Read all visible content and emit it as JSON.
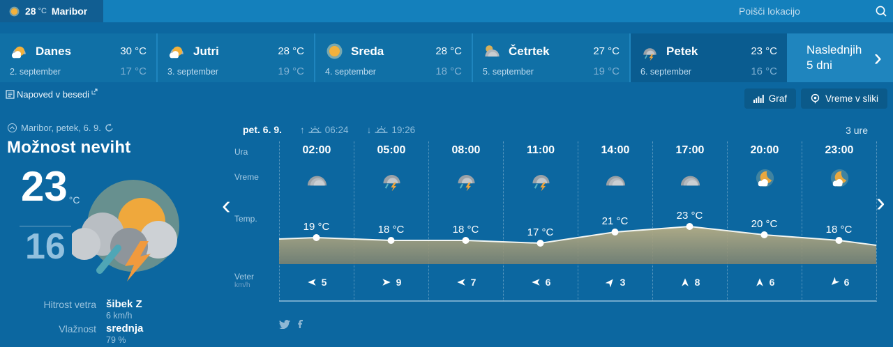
{
  "header": {
    "current_temp": "28",
    "current_unit": "°C",
    "location": "Maribor",
    "search_placeholder": "Poišči lokacijo"
  },
  "day_tabs": [
    {
      "label": "Danes",
      "date": "2. september",
      "high": "30 °C",
      "low": "17 °C",
      "icon": "sun-cloud",
      "selected": false
    },
    {
      "label": "Jutri",
      "date": "3. september",
      "high": "28 °C",
      "low": "19 °C",
      "icon": "sun-cloud",
      "selected": false
    },
    {
      "label": "Sreda",
      "date": "4. september",
      "high": "28 °C",
      "low": "18 °C",
      "icon": "sun",
      "selected": false
    },
    {
      "label": "Četrtek",
      "date": "5. september",
      "high": "27 °C",
      "low": "19 °C",
      "icon": "cloud-sun",
      "selected": false
    },
    {
      "label": "Petek",
      "date": "6. september",
      "high": "23 °C",
      "low": "16 °C",
      "icon": "storm",
      "selected": true
    }
  ],
  "next_days": {
    "line1": "Naslednjih",
    "line2": "5 dni",
    "chevron": "›"
  },
  "toolbar": {
    "text_forecast": "Napoved v besedi",
    "graf": "Graf",
    "vreme_v_sliki": "Vreme v sliki"
  },
  "summary": {
    "location_line": "Maribor, petek, 6. 9.",
    "condition": "Možnost neviht",
    "high": "23",
    "high_unit": "°C",
    "low": "16",
    "wind_label": "Hitrost vetra",
    "wind_value": "šibek Z",
    "wind_detail": "6 km/h",
    "humidity_label": "Vlažnost",
    "humidity_value": "srednja",
    "humidity_detail": "79 %"
  },
  "chart_header": {
    "date": "pet. 6. 9.",
    "sunrise_arrow": "↑",
    "sunrise": "06:24",
    "sunset_arrow": "↓",
    "sunset": "19:26",
    "interval": "3 ure"
  },
  "chart_nav": {
    "prev": "‹",
    "next": "›"
  },
  "row_labels": {
    "hour": "Ura",
    "weather": "Vreme",
    "temp": "Temp.",
    "wind": "Veter",
    "wind_unit": "km/h"
  },
  "chart_data": {
    "type": "area",
    "x": [
      "02:00",
      "05:00",
      "08:00",
      "11:00",
      "14:00",
      "17:00",
      "20:00",
      "23:00"
    ],
    "series": [
      {
        "name": "Temperatura",
        "unit": "°C",
        "values": [
          19,
          18,
          18,
          17,
          21,
          23,
          20,
          18
        ]
      },
      {
        "name": "Veter",
        "unit": "km/h",
        "values": [
          5,
          9,
          7,
          6,
          3,
          8,
          6,
          6
        ]
      }
    ],
    "weather_icons": [
      "cloud",
      "storm",
      "storm",
      "storm",
      "cloud",
      "cloud",
      "moon-cloud",
      "moon-cloud"
    ],
    "wind_dirs_deg": [
      -90,
      90,
      -90,
      -90,
      40,
      0,
      0,
      -135
    ],
    "ylim": [
      15,
      25
    ],
    "grid": "dotted-vertical",
    "legend": "none"
  },
  "colors": {
    "page_bg": "#0C67A0",
    "topbar_bg": "#1480BC",
    "chip_bg": "#115E92",
    "band_bg": "#1F85BE",
    "tab_bg": "#1070A6",
    "tab_selected_bg": "#0A5C90",
    "button_bg": "#0B5A8A",
    "area_top": "#BBB085",
    "area_bottom": "#82846E",
    "muted_text": "#9CC4DE",
    "low_temp_text": "#7FB0D2",
    "sun": "#EFA83C",
    "bolt": "#F09A3E",
    "rain": "#4FA6B6"
  },
  "footer": {
    "social": [
      "twitter-icon",
      "facebook-icon"
    ]
  }
}
